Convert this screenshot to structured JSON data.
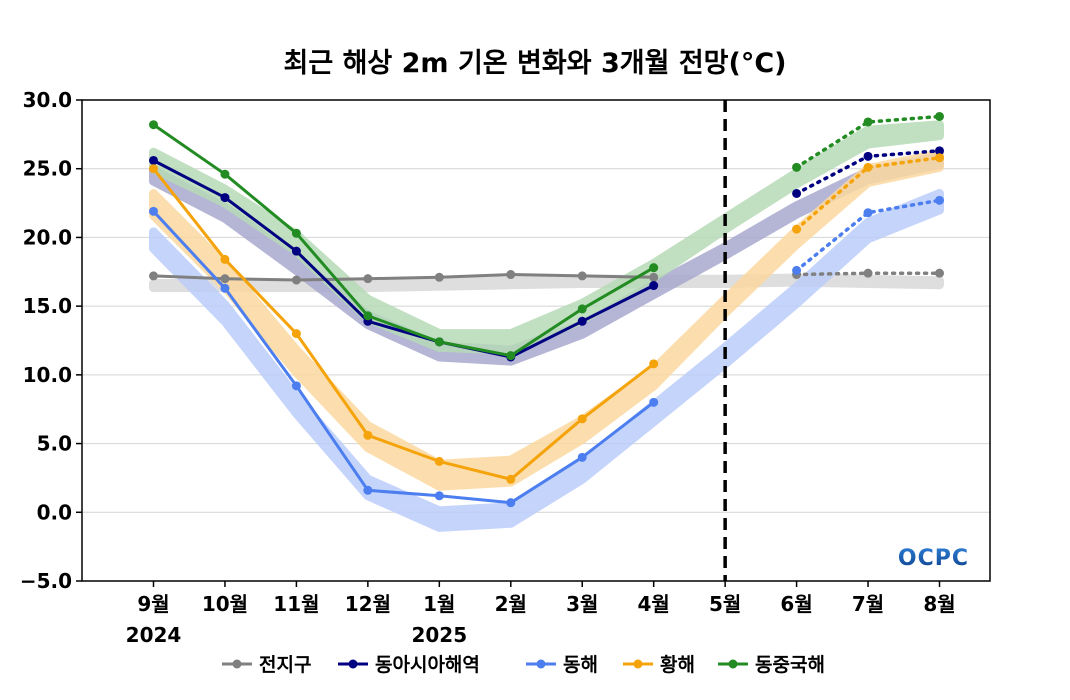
{
  "chart_data": {
    "type": "line",
    "title": "최근 해상 2m 기온 변화와 3개월 전망(°C)",
    "categories": [
      "9월",
      "10월",
      "11월",
      "12월",
      "1월",
      "2월",
      "3월",
      "4월",
      "5월",
      "6월",
      "7월",
      "8월"
    ],
    "year_labels": [
      {
        "category": "9월",
        "label": "2024"
      },
      {
        "category": "1월",
        "label": "2025"
      }
    ],
    "y_tick_labels": [
      "30.0",
      "25.0",
      "20.0",
      "15.0",
      "10.0",
      "5.0",
      "0.0",
      "−5.0"
    ],
    "ylim": [
      -5,
      30
    ],
    "forecast_divider_at": "5월",
    "grid": "horizontal",
    "legend_position": "bottom",
    "logo": "OCPC",
    "series": [
      {
        "name": "전지구",
        "color": "#808080",
        "band_color": "#d9d9d9",
        "observed": [
          17.2,
          17.0,
          16.9,
          17.0,
          17.1,
          17.3,
          17.2,
          17.1,
          null,
          null,
          null,
          null
        ],
        "forecast": [
          null,
          null,
          null,
          null,
          null,
          null,
          null,
          null,
          null,
          17.3,
          17.4,
          17.4
        ],
        "climatology": [
          16.5,
          16.5,
          16.5,
          16.5,
          16.6,
          16.7,
          16.8,
          16.8,
          16.8,
          16.9,
          16.8,
          16.7
        ],
        "climatology_spread": [
          0.15,
          0.15,
          0.15,
          0.15,
          0.15,
          0.15,
          0.15,
          0.15,
          0.15,
          0.15,
          0.15,
          0.15
        ]
      },
      {
        "name": "동아시아해역",
        "color": "#000080",
        "band_color": "#a9a9cf",
        "observed": [
          25.6,
          22.9,
          19.0,
          13.9,
          12.4,
          11.3,
          13.9,
          16.5,
          null,
          null,
          null,
          null
        ],
        "forecast": [
          null,
          null,
          null,
          null,
          null,
          null,
          null,
          null,
          null,
          23.2,
          25.9,
          26.3
        ],
        "climatology": [
          24.5,
          21.8,
          18.0,
          14.0,
          11.7,
          11.4,
          13.3,
          16.2,
          19.0,
          22.0,
          24.5,
          25.6
        ],
        "climatology_spread": [
          0.4,
          0.4,
          0.4,
          0.35,
          0.4,
          0.4,
          0.35,
          0.35,
          0.3,
          0.3,
          0.3,
          0.3
        ]
      },
      {
        "name": "동해",
        "color": "#4c7ef0",
        "band_color": "#bccdfa",
        "observed": [
          21.9,
          16.3,
          9.2,
          1.6,
          1.2,
          0.7,
          4.0,
          8.0,
          null,
          null,
          null,
          null
        ],
        "forecast": [
          null,
          null,
          null,
          null,
          null,
          null,
          null,
          null,
          null,
          17.6,
          21.8,
          22.7
        ],
        "climatology": [
          19.8,
          14.5,
          7.8,
          1.8,
          -0.5,
          -0.2,
          3.0,
          7.2,
          11.4,
          15.8,
          20.5,
          22.6
        ],
        "climatology_spread": [
          0.6,
          0.6,
          0.6,
          0.6,
          0.6,
          0.6,
          0.6,
          0.6,
          0.6,
          0.6,
          0.6,
          0.6
        ]
      },
      {
        "name": "황해",
        "color": "#f5a30a",
        "band_color": "#fcd9a0",
        "observed": [
          25.0,
          18.4,
          13.0,
          5.6,
          3.7,
          2.4,
          6.8,
          10.8,
          null,
          null,
          null,
          null
        ],
        "forecast": [
          null,
          null,
          null,
          null,
          null,
          null,
          null,
          null,
          null,
          20.6,
          25.1,
          25.8
        ],
        "climatology": [
          22.4,
          17.2,
          11.0,
          5.5,
          2.7,
          3.0,
          6.0,
          9.8,
          15.0,
          20.0,
          24.5,
          25.6
        ],
        "climatology_spread": [
          0.8,
          0.8,
          0.8,
          0.8,
          0.8,
          0.8,
          0.7,
          0.6,
          0.5,
          0.5,
          0.5,
          0.5
        ]
      },
      {
        "name": "동중국해",
        "color": "#228b22",
        "band_color": "#b7dab7",
        "observed": [
          28.2,
          24.6,
          20.3,
          14.3,
          12.4,
          11.4,
          14.8,
          17.8,
          null,
          null,
          null,
          null
        ],
        "forecast": [
          null,
          null,
          null,
          null,
          null,
          null,
          null,
          null,
          null,
          25.1,
          28.4,
          28.8
        ],
        "climatology": [
          25.6,
          23.0,
          19.6,
          14.8,
          12.5,
          12.4,
          14.6,
          17.6,
          21.0,
          24.3,
          27.3,
          27.8
        ],
        "climatology_spread": [
          0.6,
          0.5,
          0.6,
          0.7,
          0.5,
          0.6,
          0.6,
          0.5,
          0.4,
          0.4,
          0.5,
          0.4
        ]
      }
    ]
  }
}
